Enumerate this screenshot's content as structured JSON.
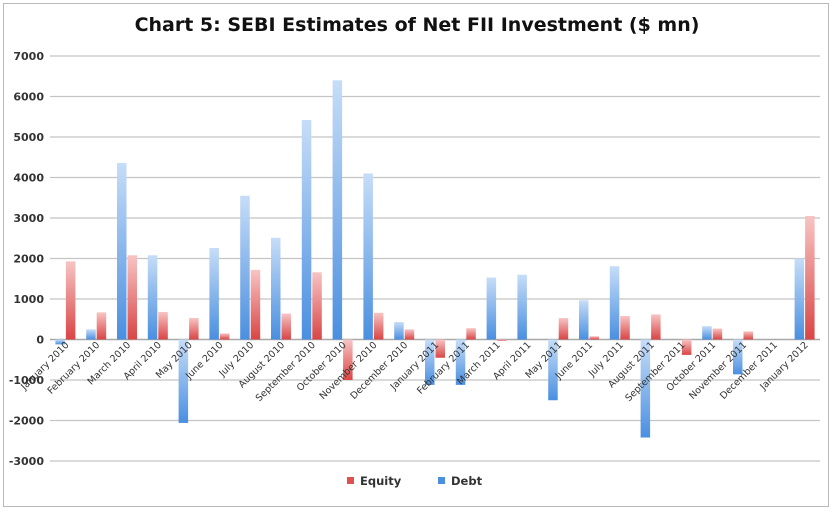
{
  "chart_data": {
    "type": "bar",
    "title": "Chart 5: SEBI Estimates of Net FII Investment ($ mn)",
    "xlabel": "",
    "ylabel": "",
    "ylim": [
      -3000,
      7000
    ],
    "yticks": [
      -3000,
      -2000,
      -1000,
      0,
      1000,
      2000,
      3000,
      4000,
      5000,
      6000,
      7000
    ],
    "grid": true,
    "legend": "bottom",
    "categories": [
      "January 2010",
      "February 2010",
      "March 2010",
      "April 2010",
      "May 2010",
      "June 2010",
      "July 2010",
      "August 2010",
      "September 2010",
      "October 2010",
      "November 2010",
      "December 2010",
      "January 2011",
      "February 2011",
      "March 2011",
      "April 2011",
      "May 2011",
      "June 2011",
      "July 2011",
      "August 2011",
      "September 2011",
      "October 2011",
      "November 2011",
      "December 2011",
      "January 2012"
    ],
    "series": [
      {
        "name": "Equity",
        "color": "#e05252",
        "values": [
          1930,
          670,
          2080,
          680,
          530,
          150,
          1720,
          640,
          1660,
          -1000,
          660,
          250,
          -450,
          280,
          -30,
          0,
          530,
          80,
          580,
          620,
          -380,
          270,
          200,
          0,
          3050
        ]
      },
      {
        "name": "Debt",
        "color": "#5a9de6",
        "values": [
          -120,
          250,
          4360,
          2080,
          -2060,
          2260,
          3550,
          2510,
          5420,
          6400,
          4100,
          430,
          -1120,
          -1120,
          1530,
          1600,
          -1500,
          970,
          1810,
          -2420,
          0,
          330,
          -860,
          0,
          2000
        ]
      }
    ]
  }
}
